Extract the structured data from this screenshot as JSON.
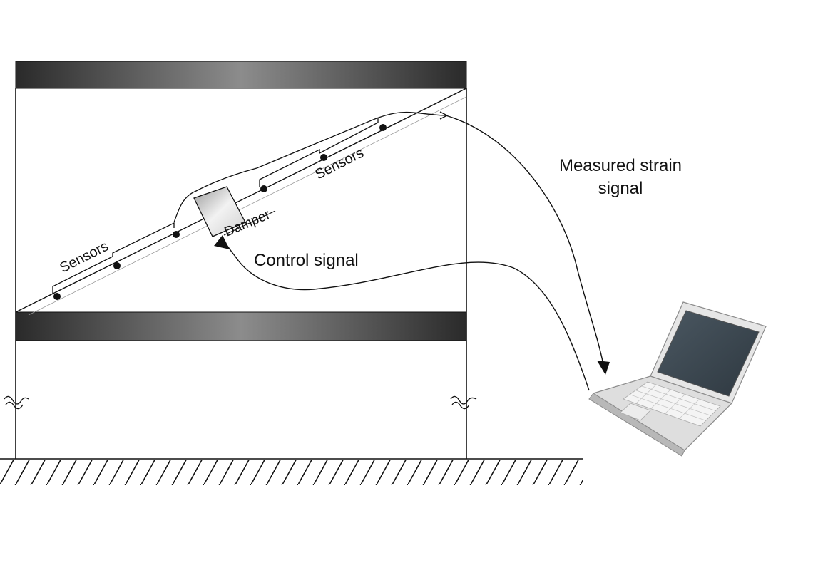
{
  "labels": {
    "sensors_left": "Sensors",
    "sensors_right": "Sensors",
    "damper": "Damper",
    "control_signal": "Control signal",
    "measured_line1": "Measured strain",
    "measured_line2": "signal"
  },
  "colors": {
    "beam_dark": "#2f2f2f",
    "beam_light": "#8a8a8a",
    "line": "#111111",
    "laptop_screen": "#3e4a55",
    "laptop_body": "#d9d9d9"
  }
}
